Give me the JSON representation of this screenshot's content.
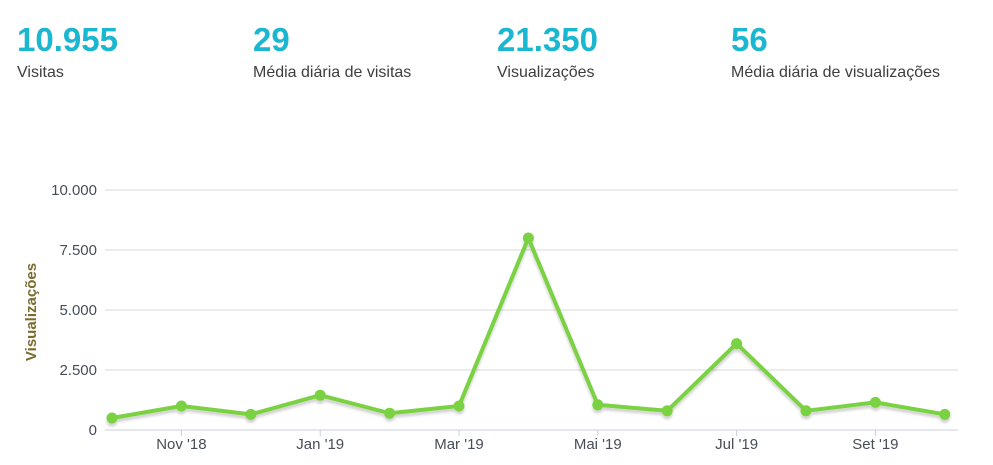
{
  "kpis": [
    {
      "value": "10.955",
      "label": "Visitas"
    },
    {
      "value": "29",
      "label": "Média diária de visitas"
    },
    {
      "value": "21.350",
      "label": "Visualizações"
    },
    {
      "value": "56",
      "label": "Média diária de visualizações"
    }
  ],
  "colors": {
    "kpi_value": "#1bb6d0",
    "kpi_label": "#3e3e3e",
    "line": "#7ad142",
    "marker": "#7ad142",
    "axis_title_text": "#7b6b2f",
    "tick_text": "#474e58",
    "grid_line": "#d8d8d8",
    "axis_line": "#c9d0da"
  },
  "chart_data": {
    "type": "line",
    "title": "",
    "xlabel": "",
    "ylabel": "Visualizações",
    "ylim": [
      0,
      10000
    ],
    "grid": "horizontal",
    "legend": "none",
    "marker": "circle",
    "series": [
      {
        "name": "Visualizações",
        "values": [
          500,
          1000,
          650,
          1450,
          700,
          1000,
          8000,
          1050,
          800,
          3600,
          800,
          1150,
          650
        ]
      }
    ],
    "x_tick_labels": [
      "Nov '18",
      "Jan '19",
      "Mar '19",
      "Mai '19",
      "Jul '19",
      "Set '19"
    ],
    "x_tick_point_indices": [
      1,
      3,
      5,
      7,
      9,
      11
    ],
    "y_tick_values": [
      0,
      2500,
      5000,
      7500,
      10000
    ],
    "y_tick_labels": [
      "0",
      "2.500",
      "5.000",
      "7.500",
      "10.000"
    ]
  }
}
